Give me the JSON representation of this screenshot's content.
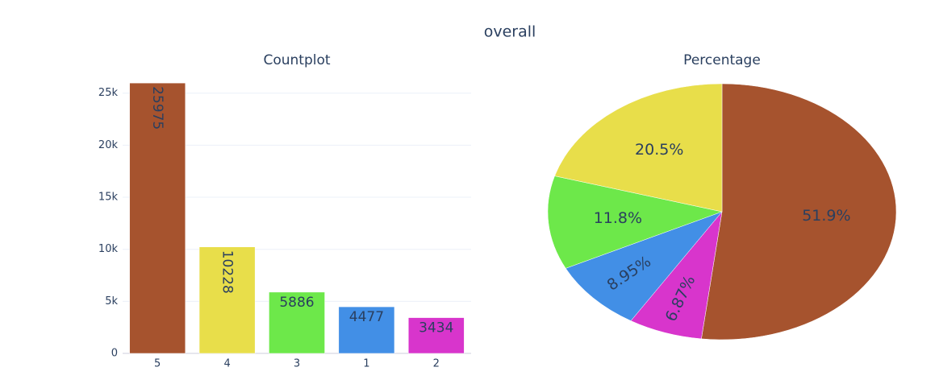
{
  "title": "overall",
  "chart_data": [
    {
      "type": "bar",
      "title": "Countplot",
      "categories": [
        "5",
        "4",
        "3",
        "1",
        "2"
      ],
      "values": [
        25975,
        10228,
        5886,
        4477,
        3434
      ],
      "colors": [
        "#a6532e",
        "#e8de4a",
        "#6de84a",
        "#428fe6",
        "#d835cc"
      ],
      "ylim": [
        0,
        27300
      ],
      "yticks": [
        0,
        {
          "value": 5000,
          "label": "5k"
        },
        {
          "value": 10000,
          "label": "10k"
        },
        {
          "value": 15000,
          "label": "15k"
        },
        {
          "value": 20000,
          "label": "20k"
        },
        {
          "value": 25000,
          "label": "25k"
        }
      ],
      "grid": true
    },
    {
      "type": "pie",
      "title": "Percentage",
      "values": [
        51.9,
        6.87,
        8.95,
        11.8,
        20.5
      ],
      "value_labels": [
        "51.9%",
        "6.87%",
        "8.95%",
        "11.8%",
        "20.5%"
      ],
      "colors": [
        "#a6532e",
        "#d835cc",
        "#428fe6",
        "#6de84a",
        "#e8de4a"
      ],
      "direction": "clockwise"
    }
  ]
}
